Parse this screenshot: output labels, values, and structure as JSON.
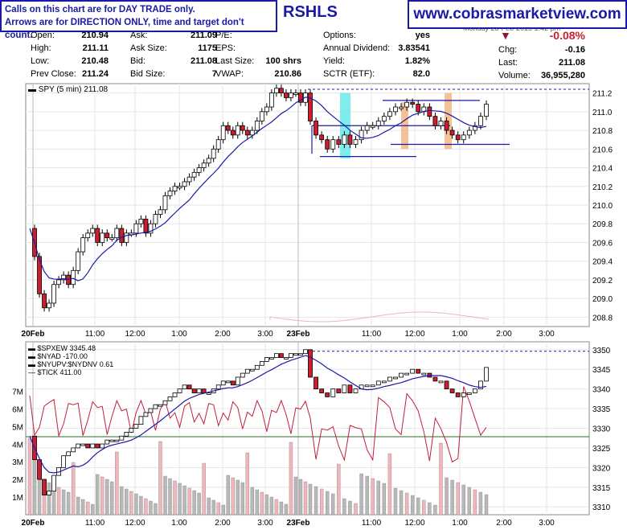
{
  "header": {
    "notice_line1": "Calls on this chart are for DAY TRADE only.",
    "notice_line2": "Arrows are for DIRECTION ONLY, time and target don't count.",
    "symbol": "RSHLS",
    "site": "www.cobrasmarketview.com",
    "date": "Monday 23-Feb-2015 1:42 pm"
  },
  "quote": {
    "left": [
      {
        "label": "Open:",
        "value": "210.94"
      },
      {
        "label": "High:",
        "value": "211.11"
      },
      {
        "label": "Low:",
        "value": "210.48"
      },
      {
        "label": "Prev Close:",
        "value": "211.24"
      }
    ],
    "mid": [
      {
        "label": "Ask:",
        "value": "211.09"
      },
      {
        "label": "Ask Size:",
        "value": "1175"
      },
      {
        "label": "Bid:",
        "value": "211.08"
      },
      {
        "label": "Bid Size:",
        "value": "7"
      }
    ],
    "mid2": [
      {
        "label": "P/E:",
        "value": ""
      },
      {
        "label": "EPS:",
        "value": ""
      },
      {
        "label": "Last Size:",
        "value": "100 shrs"
      },
      {
        "label": "VWAP:",
        "value": "210.86"
      }
    ],
    "right1": [
      {
        "label": "Options:",
        "value": "yes"
      },
      {
        "label": "Annual Dividend:",
        "value": "3.83541"
      },
      {
        "label": "Yield:",
        "value": "1.82%"
      },
      {
        "label": "SCTR (ETF):",
        "value": "82.0"
      }
    ],
    "right2": [
      {
        "label": "Chg:",
        "value": "-0.16"
      },
      {
        "label": "Last:",
        "value": "211.08"
      },
      {
        "label": "Volume:",
        "value": "36,955,280"
      }
    ],
    "change_pct": "-0.08%",
    "change_arrow": "▼"
  },
  "colors": {
    "up_candle": "#ffffff",
    "down_candle": "#d01c2c",
    "ma": "#1a1aa8",
    "brand": "#1a1aa8",
    "highlight_cyan": "#5fe7ea",
    "highlight_orange": "#f2b27c",
    "breadth_line": "#c0203a",
    "horizontal_line": "#2e6b2e",
    "vol_gray": "#b8b8b8",
    "vol_pink": "#f4b4bc"
  },
  "chart_data": [
    {
      "type": "line",
      "title": "SPY (5 min) 211.08",
      "x_ticks_day1": [
        "20Feb",
        "11:00",
        "12:00",
        "1:00",
        "2:00",
        "3:00"
      ],
      "x_ticks_day2": [
        "23Feb",
        "11:00",
        "12:00",
        "1:00",
        "2:00",
        "3:00"
      ],
      "ylim": [
        208.7,
        211.3
      ],
      "y_ticks": [
        208.8,
        209.0,
        209.2,
        209.4,
        209.6,
        209.8,
        210.0,
        210.2,
        210.4,
        210.6,
        210.8,
        211.0,
        211.2
      ],
      "series": [
        {
          "values": [
            209.75,
            209.45,
            209.05,
            208.9,
            208.95,
            209.15,
            209.2,
            209.25,
            209.15,
            209.3,
            209.5,
            209.65,
            209.7,
            209.75,
            209.6,
            209.7,
            209.65,
            209.65,
            209.75,
            209.6,
            209.7,
            209.7,
            209.8,
            209.85,
            209.7,
            209.8,
            209.9,
            209.95,
            210.1,
            210.15,
            210.2,
            210.2,
            210.25,
            210.3,
            210.35,
            210.4,
            210.45,
            210.5,
            210.6,
            210.7,
            210.85,
            210.8,
            210.75,
            210.85,
            210.8,
            210.75,
            210.8,
            210.9,
            211.0,
            211.05,
            211.2,
            211.25,
            211.2,
            211.15,
            211.2,
            211.2,
            211.1,
            211.2,
            210.9,
            210.75,
            210.7,
            210.6,
            210.7,
            210.65,
            210.75,
            210.65,
            210.7,
            210.8,
            210.85,
            210.85,
            210.9,
            210.95,
            211.0,
            211.05,
            211.05,
            211.1,
            211.08,
            211.0,
            211.05,
            210.95,
            210.85,
            210.9,
            210.8,
            210.75,
            210.7,
            210.75,
            210.8,
            210.85,
            210.95,
            211.08
          ]
        }
      ],
      "annotations": {
        "dashed_resistance": 211.24,
        "box_upper": [
          211.12,
          210.85
        ],
        "box_lower": [
          210.65,
          210.5
        ]
      }
    },
    {
      "type": "line",
      "legend": [
        "$SPXEW 3345.48",
        "$NYAD -170.00",
        "$NYUPV:$NYDNV 0.61",
        "$TICK 411.00"
      ],
      "x_ticks_day1": [
        "20Feb",
        "11:00",
        "12:00",
        "1:00",
        "2:00",
        "3:00"
      ],
      "x_ticks_day2": [
        "23Feb",
        "11:00",
        "12:00",
        "1:00",
        "2:00",
        "3:00"
      ],
      "ylim": [
        3308,
        3352
      ],
      "y_ticks": [
        3310,
        3315,
        3320,
        3325,
        3330,
        3335,
        3340,
        3345,
        3350
      ],
      "volume_ticks": [
        "1M",
        "2M",
        "3M",
        "4M",
        "5M",
        "6M",
        "7M"
      ],
      "series": [
        {
          "name": "$SPXEW",
          "values": [
            3328,
            3322,
            3317,
            3313,
            3314,
            3318,
            3320,
            3323,
            3324,
            3325,
            3326,
            3326,
            3325,
            3326,
            3325,
            3326,
            3327,
            3327,
            3327,
            3328,
            3329,
            3330,
            3331,
            3333,
            3334,
            3335,
            3336,
            3336,
            3337,
            3338,
            3339,
            3340,
            3341,
            3340,
            3339,
            3340,
            3339,
            3339,
            3340,
            3341,
            3342,
            3342,
            3341,
            3343,
            3344,
            3345,
            3345,
            3346,
            3347,
            3348,
            3348,
            3349,
            3348,
            3348,
            3349,
            3349,
            3349,
            3350,
            3343,
            3340,
            3339,
            3338,
            3340,
            3339,
            3341,
            3339,
            3340,
            3341,
            3341,
            3341,
            3342,
            3342,
            3343,
            3343,
            3344,
            3344,
            3345,
            3344,
            3344,
            3343,
            3342,
            3342,
            3340,
            3339,
            3338,
            3339,
            3339,
            3340,
            3342,
            3345.48
          ]
        }
      ]
    }
  ]
}
